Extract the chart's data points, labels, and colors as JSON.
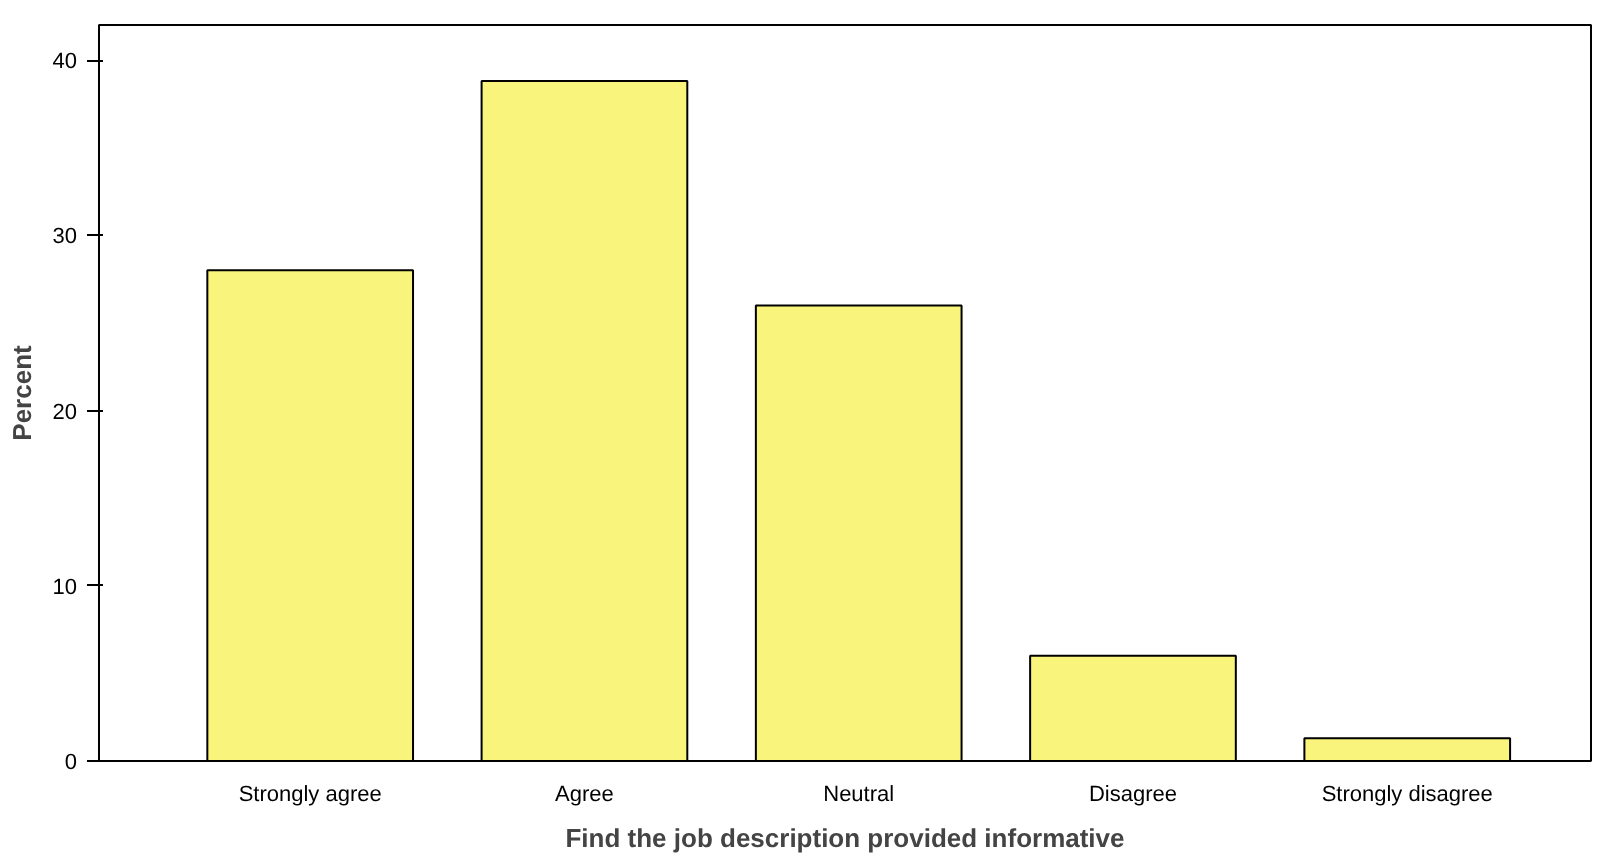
{
  "chart_data": {
    "type": "bar",
    "xlabel": "Find the job description provided informative",
    "ylabel": "Percent",
    "categories": [
      "Strongly agree",
      "Agree",
      "Neutral",
      "Disagree",
      "Strongly disagree"
    ],
    "values": [
      28.0,
      38.8,
      26.0,
      6.0,
      1.3
    ],
    "color": "#f8f47c",
    "ylim": [
      0,
      42
    ],
    "yticks": [
      0,
      10,
      20,
      30,
      40
    ],
    "grid": false
  }
}
